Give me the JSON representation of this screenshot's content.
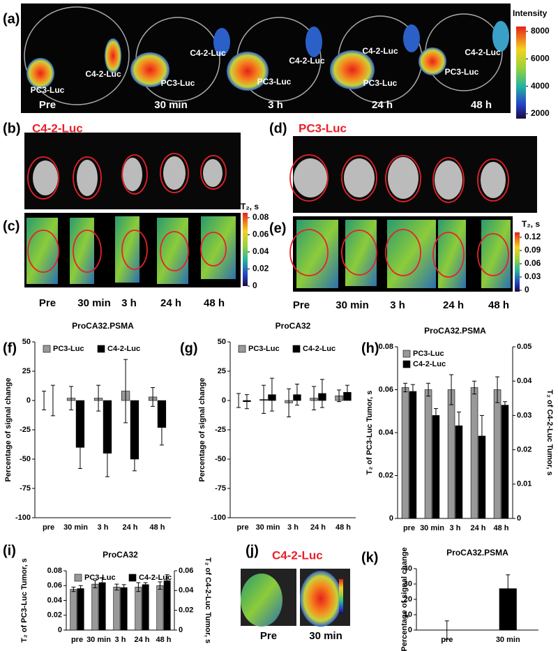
{
  "figure": {
    "a": {
      "label": "(a)",
      "colorbar_title": "Intensity",
      "colorbar_ticks": [
        8000,
        6000,
        4000,
        2000
      ],
      "times": [
        "Pre",
        "30 min",
        "3 h",
        "24 h",
        "48 h"
      ],
      "c42": [
        "C4-2-Luc",
        "C4-2-Luc",
        "C4-2-Luc",
        "C4-2-Luc",
        "C4-2-Luc"
      ],
      "pc3": [
        "PC3-Luc",
        "PC3-Luc",
        "PC3-Luc",
        "PC3-Luc",
        "PC3-Luc"
      ]
    },
    "b": {
      "label": "(b)",
      "title": "C4-2-Luc"
    },
    "c": {
      "label": "(c)",
      "colorbar_title": "T₂, s",
      "colorbar_ticks": [
        0.08,
        0.06,
        0.04,
        0.02,
        0
      ],
      "times": [
        "Pre",
        "30 min",
        "3 h",
        "24 h",
        "48 h"
      ]
    },
    "d": {
      "label": "(d)",
      "title": "PC3-Luc"
    },
    "e": {
      "label": "(e)",
      "colorbar_title": "T₂, s",
      "colorbar_ticks": [
        0.12,
        0.09,
        0.06,
        0.03,
        0
      ],
      "times": [
        "Pre",
        "30 min",
        "3 h",
        "24 h",
        "48 h"
      ]
    },
    "j": {
      "label": "(j)",
      "title": "C4-2-Luc",
      "times": [
        "Pre",
        "30 min"
      ]
    }
  },
  "chart_data": [
    {
      "type": "bar",
      "label": "(f)",
      "title": "ProCA32.PSMA",
      "ylabel": "Percentage of signal change",
      "categories": [
        "pre",
        "30 min",
        "3 h",
        "24 h",
        "48 h"
      ],
      "series": [
        {
          "name": "PC3-Luc",
          "color": "#999999",
          "values": [
            0,
            2,
            2,
            8,
            3
          ],
          "errors": [
            8,
            10,
            11,
            27,
            8
          ]
        },
        {
          "name": "C4-2-Luc",
          "color": "#000000",
          "values": [
            0,
            -40,
            -45,
            -50,
            -23
          ],
          "errors": [
            13,
            18,
            20,
            10,
            15
          ]
        }
      ],
      "ylim": [
        -100,
        50
      ],
      "yticks": [
        -100,
        -75,
        -50,
        -25,
        0,
        25,
        50
      ],
      "legend": "top"
    },
    {
      "type": "bar",
      "label": "(g)",
      "title": "ProCA32",
      "ylabel": "Percentage of signal change",
      "categories": [
        "pre",
        "30 min",
        "3 h",
        "24 h",
        "48 h"
      ],
      "series": [
        {
          "name": "PC3-Luc",
          "color": "#999999",
          "values": [
            0,
            1,
            -2,
            2,
            4
          ],
          "errors": [
            6,
            12,
            12,
            10,
            5
          ]
        },
        {
          "name": "C4-2-Luc",
          "color": "#000000",
          "values": [
            -1,
            5,
            5,
            6,
            7
          ],
          "errors": [
            6,
            14,
            9,
            12,
            6
          ]
        }
      ],
      "ylim": [
        -100,
        50
      ],
      "yticks": [
        -100,
        -75,
        -50,
        -25,
        0,
        25,
        50
      ],
      "legend": "top"
    },
    {
      "type": "bar",
      "label": "(h)",
      "title": "ProCA32.PSMA",
      "ylabel": "T₂ of PC3-Luc Tumor, s",
      "y2label": "T₂ of C4-2-Luc Tumor, s",
      "categories": [
        "pre",
        "30 min",
        "3 h",
        "24 h",
        "48 h"
      ],
      "series": [
        {
          "name": "PC3-Luc",
          "color": "#999999",
          "values": [
            0.061,
            0.06,
            0.06,
            0.061,
            0.06
          ],
          "errors": [
            0.002,
            0.003,
            0.007,
            0.003,
            0.006
          ]
        },
        {
          "name": "C4-2-Luc",
          "color": "#000000",
          "axis": "y2",
          "values": [
            0.037,
            0.03,
            0.027,
            0.024,
            0.033
          ],
          "errors": [
            0.002,
            0.002,
            0.004,
            0.006,
            0.001
          ]
        }
      ],
      "ylim": [
        0,
        0.08
      ],
      "yticks": [
        0,
        0.02,
        0.04,
        0.06,
        0.08
      ],
      "y2lim": [
        0,
        0.05
      ],
      "y2ticks": [
        0,
        0.01,
        0.02,
        0.03,
        0.04,
        0.05
      ],
      "legend": "top-left"
    },
    {
      "type": "bar",
      "label": "(i)",
      "title": "ProCA32",
      "ylabel": "T₂ of PC3-Luc Tumor, s",
      "y2label": "T₂ of C4-2-Luc Tumor, s",
      "categories": [
        "pre",
        "30 min",
        "3 h",
        "24 h",
        "48 h"
      ],
      "series": [
        {
          "name": "PC3-Luc",
          "color": "#999999",
          "values": [
            0.055,
            0.062,
            0.058,
            0.058,
            0.06
          ],
          "errors": [
            0.003,
            0.005,
            0.004,
            0.006,
            0.005
          ]
        },
        {
          "name": "C4-2-Luc",
          "color": "#000000",
          "axis": "y2",
          "values": [
            0.042,
            0.048,
            0.043,
            0.046,
            0.05
          ],
          "errors": [
            0.003,
            0.005,
            0.003,
            0.002,
            0.006
          ]
        }
      ],
      "ylim": [
        0,
        0.08
      ],
      "yticks": [
        0,
        0.02,
        0.04,
        0.06,
        0.08
      ],
      "y2lim": [
        0,
        0.06
      ],
      "y2ticks": [
        0,
        0.02,
        0.04,
        0.06
      ],
      "legend": "top"
    },
    {
      "type": "bar",
      "label": "(k)",
      "title": "ProCA32.PSMA",
      "ylabel": "Percentage of signal change",
      "categories": [
        "pre",
        "30 min"
      ],
      "values": [
        0,
        27
      ],
      "errors": [
        6,
        9
      ],
      "color": "#000000",
      "ylim": [
        0,
        40
      ],
      "yticks": [
        0,
        10,
        20,
        30,
        40
      ]
    }
  ]
}
